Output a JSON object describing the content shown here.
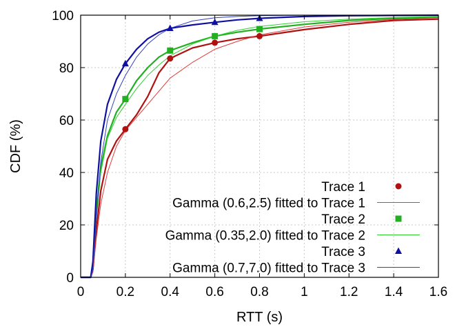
{
  "colors": {
    "trace1": "#b01010",
    "gamma1": "#e03a3a",
    "trace2": "#22b022",
    "gamma2": "#30d030",
    "trace3": "#1010a0",
    "gamma3": "#3040c0",
    "grid": "#c8c8c8"
  },
  "chart_data": {
    "type": "line",
    "xlabel": "RTT (s)",
    "ylabel": "CDF (%)",
    "xlim": [
      0,
      1.6
    ],
    "ylim": [
      0,
      100
    ],
    "xticks": [
      "0",
      "0.2",
      "0.4",
      "0.6",
      "0.8",
      "1",
      "1.2",
      "1.4",
      "1.6"
    ],
    "yticks": [
      "0",
      "20",
      "40",
      "60",
      "80",
      "100"
    ],
    "grid": true,
    "legend_position": "bottom-right",
    "series": [
      {
        "name": "Trace 1",
        "kind": "empirical",
        "marker": "circle",
        "color_key": "trace1",
        "x": [
          0.0,
          0.045,
          0.055,
          0.07,
          0.09,
          0.12,
          0.16,
          0.2,
          0.25,
          0.3,
          0.35,
          0.4,
          0.5,
          0.6,
          0.7,
          0.8,
          1.0,
          1.2,
          1.4,
          1.6
        ],
        "y": [
          0,
          0,
          3,
          18,
          33,
          45,
          52,
          56.5,
          62,
          69,
          78,
          83.5,
          87.5,
          89.5,
          91,
          92,
          94.5,
          96.5,
          98,
          98.5
        ],
        "markers_x": [
          0.2,
          0.4,
          0.6,
          0.8
        ],
        "markers_y": [
          56.5,
          83.5,
          89.5,
          92
        ]
      },
      {
        "name": "Gamma (0.6,2.5) fitted to Trace 1",
        "kind": "fit",
        "color_key": "gamma1",
        "x": [
          0.0,
          0.045,
          0.055,
          0.07,
          0.09,
          0.12,
          0.16,
          0.2,
          0.25,
          0.3,
          0.35,
          0.4,
          0.5,
          0.6,
          0.7,
          0.8,
          1.0,
          1.2,
          1.4,
          1.6
        ],
        "y": [
          0,
          0,
          2,
          15,
          28,
          40,
          50,
          56,
          61,
          66,
          71,
          76,
          82,
          87,
          90,
          92.5,
          95.5,
          97.3,
          98.4,
          99
        ]
      },
      {
        "name": "Trace 2",
        "kind": "empirical",
        "marker": "square",
        "color_key": "trace2",
        "x": [
          0.0,
          0.045,
          0.055,
          0.07,
          0.09,
          0.12,
          0.16,
          0.2,
          0.25,
          0.3,
          0.35,
          0.4,
          0.5,
          0.6,
          0.7,
          0.8,
          1.0,
          1.2,
          1.4,
          1.6
        ],
        "y": [
          0,
          0,
          5,
          25,
          42,
          54,
          63,
          68,
          75,
          80,
          84,
          86.5,
          89.5,
          92,
          93.5,
          94.7,
          96.5,
          98,
          98.8,
          99.3
        ],
        "markers_x": [
          0.2,
          0.4,
          0.6,
          0.8
        ],
        "markers_y": [
          68,
          86.5,
          92,
          94.7
        ]
      },
      {
        "name": "Gamma (0.35,2.0) fitted to Trace 2",
        "kind": "fit",
        "color_key": "gamma2",
        "x": [
          0.0,
          0.045,
          0.055,
          0.07,
          0.09,
          0.12,
          0.16,
          0.2,
          0.25,
          0.3,
          0.35,
          0.4,
          0.5,
          0.6,
          0.7,
          0.8,
          1.0,
          1.2,
          1.4,
          1.6
        ],
        "y": [
          0,
          0,
          4,
          22,
          40,
          53,
          61,
          66,
          72,
          77,
          81,
          84.5,
          89,
          92,
          94.2,
          95.7,
          97.5,
          98.5,
          99.1,
          99.5
        ]
      },
      {
        "name": "Trace 3",
        "kind": "empirical",
        "marker": "triangle",
        "color_key": "trace3",
        "x": [
          0.0,
          0.045,
          0.055,
          0.07,
          0.09,
          0.12,
          0.16,
          0.2,
          0.25,
          0.3,
          0.35,
          0.4,
          0.5,
          0.6,
          0.7,
          0.8,
          1.0,
          1.2,
          1.4,
          1.6
        ],
        "y": [
          0,
          0,
          6,
          32,
          52,
          66,
          75.5,
          81.5,
          87,
          91,
          93.5,
          95,
          96.3,
          97.3,
          98.2,
          98.8,
          99.5,
          99.8,
          99.9,
          100
        ],
        "markers_x": [
          0.2,
          0.4,
          0.6,
          0.8
        ],
        "markers_y": [
          81.5,
          95,
          97.3,
          98.8
        ]
      },
      {
        "name": "Gamma (0.7,7.0) fitted to Trace 3",
        "kind": "fit",
        "color_key": "gamma3",
        "x": [
          0.0,
          0.045,
          0.055,
          0.07,
          0.09,
          0.12,
          0.16,
          0.2,
          0.25,
          0.3,
          0.35,
          0.4,
          0.5,
          0.6,
          0.7,
          0.8,
          1.0,
          1.2,
          1.4,
          1.6
        ],
        "y": [
          0,
          0,
          3,
          22,
          44,
          60,
          70,
          77,
          84,
          89,
          92.5,
          95,
          97.8,
          99,
          99.5,
          99.8,
          100,
          100,
          100,
          100
        ]
      }
    ]
  }
}
